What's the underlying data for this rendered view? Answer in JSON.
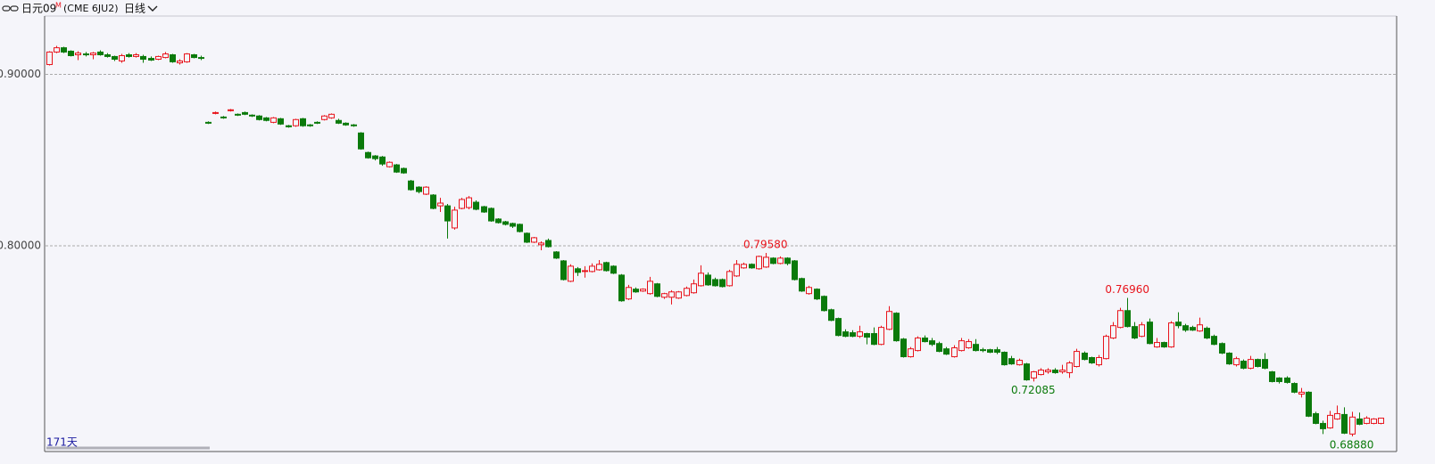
{
  "toolbar": {
    "symbol": "日元09",
    "badge": "M",
    "contract": "(CME 6JU2)",
    "period": "日线"
  },
  "chart_data": {
    "type": "candlestick",
    "ohlc": [
      [
        0.9057,
        0.9135,
        0.9052,
        0.913
      ],
      [
        0.913,
        0.9166,
        0.9124,
        0.9155
      ],
      [
        0.9155,
        0.9161,
        0.9124,
        0.913
      ],
      [
        0.9135,
        0.914,
        0.9104,
        0.9109
      ],
      [
        0.9114,
        0.9135,
        0.9083,
        0.9124
      ],
      [
        0.9119,
        0.913,
        0.9104,
        0.9114
      ],
      [
        0.9114,
        0.913,
        0.9088,
        0.9124
      ],
      [
        0.913,
        0.914,
        0.9109,
        0.9114
      ],
      [
        0.9114,
        0.9124,
        0.9098,
        0.9104
      ],
      [
        0.9104,
        0.9109,
        0.9078,
        0.9088
      ],
      [
        0.9078,
        0.9119,
        0.9067,
        0.9109
      ],
      [
        0.9114,
        0.9124,
        0.9098,
        0.9104
      ],
      [
        0.9104,
        0.9124,
        0.9098,
        0.9114
      ],
      [
        0.9104,
        0.9114,
        0.9067,
        0.9088
      ],
      [
        0.9093,
        0.9104,
        0.9078,
        0.9083
      ],
      [
        0.9088,
        0.9109,
        0.9083,
        0.9104
      ],
      [
        0.9098,
        0.913,
        0.9093,
        0.9119
      ],
      [
        0.9114,
        0.9119,
        0.9067,
        0.9073
      ],
      [
        0.9067,
        0.9088,
        0.9057,
        0.9078
      ],
      [
        0.9073,
        0.9124,
        0.9067,
        0.9119
      ],
      [
        0.9114,
        0.9119,
        0.9093,
        0.9098
      ],
      [
        0.9098,
        0.9109,
        0.9083,
        0.9093
      ],
      [
        0.872,
        0.8726,
        0.871,
        0.8715
      ],
      [
        0.8772,
        0.8783,
        0.8767,
        0.8777
      ],
      [
        0.8751,
        0.8757,
        0.8741,
        0.8746
      ],
      [
        0.8788,
        0.8798,
        0.8783,
        0.8793
      ],
      [
        0.8767,
        0.8772,
        0.8757,
        0.8762
      ],
      [
        0.8777,
        0.8783,
        0.8762,
        0.8767
      ],
      [
        0.8762,
        0.8767,
        0.8751,
        0.8757
      ],
      [
        0.8757,
        0.8762,
        0.8731,
        0.8736
      ],
      [
        0.8746,
        0.8751,
        0.8726,
        0.8731
      ],
      [
        0.872,
        0.8751,
        0.8715,
        0.8746
      ],
      [
        0.8741,
        0.8746,
        0.8705,
        0.871
      ],
      [
        0.87,
        0.8705,
        0.8689,
        0.8694
      ],
      [
        0.87,
        0.8741,
        0.8694,
        0.8736
      ],
      [
        0.8741,
        0.8746,
        0.8694,
        0.87
      ],
      [
        0.8705,
        0.871,
        0.8694,
        0.87
      ],
      [
        0.872,
        0.8726,
        0.871,
        0.8715
      ],
      [
        0.8736,
        0.8762,
        0.8731,
        0.8757
      ],
      [
        0.8746,
        0.8772,
        0.8741,
        0.8767
      ],
      [
        0.8731,
        0.8741,
        0.871,
        0.8715
      ],
      [
        0.8715,
        0.872,
        0.87,
        0.8705
      ],
      [
        0.8705,
        0.871,
        0.8694,
        0.87
      ],
      [
        0.8658,
        0.8663,
        0.856,
        0.8565
      ],
      [
        0.8544,
        0.8549,
        0.8508,
        0.8513
      ],
      [
        0.8524,
        0.8529,
        0.8498,
        0.8508
      ],
      [
        0.8518,
        0.8524,
        0.8467,
        0.8477
      ],
      [
        0.8461,
        0.8492,
        0.8456,
        0.8487
      ],
      [
        0.8472,
        0.8477,
        0.8425,
        0.843
      ],
      [
        0.8451,
        0.8456,
        0.842,
        0.8425
      ],
      [
        0.8378,
        0.8384,
        0.8321,
        0.8327
      ],
      [
        0.8342,
        0.8347,
        0.8306,
        0.8316
      ],
      [
        0.8301,
        0.8347,
        0.8296,
        0.8342
      ],
      [
        0.8296,
        0.8301,
        0.8213,
        0.8218
      ],
      [
        0.8233,
        0.828,
        0.8197,
        0.8249
      ],
      [
        0.8233,
        0.8244,
        0.8042,
        0.8145
      ],
      [
        0.8104,
        0.8228,
        0.8094,
        0.8208
      ],
      [
        0.8218,
        0.828,
        0.8213,
        0.827
      ],
      [
        0.8223,
        0.829,
        0.8213,
        0.828
      ],
      [
        0.8254,
        0.8265,
        0.8207,
        0.8213
      ],
      [
        0.8228,
        0.8233,
        0.8192,
        0.8197
      ],
      [
        0.8218,
        0.8223,
        0.814,
        0.8145
      ],
      [
        0.8156,
        0.8161,
        0.813,
        0.8135
      ],
      [
        0.814,
        0.8145,
        0.8119,
        0.8125
      ],
      [
        0.813,
        0.8135,
        0.8104,
        0.8114
      ],
      [
        0.8125,
        0.813,
        0.8078,
        0.8083
      ],
      [
        0.8073,
        0.8078,
        0.8016,
        0.8021
      ],
      [
        0.8021,
        0.8052,
        0.8016,
        0.8047
      ],
      [
        0.8006,
        0.8026,
        0.7974,
        0.8016
      ],
      [
        0.8031,
        0.8042,
        0.799,
        0.7995
      ],
      [
        0.7964,
        0.7969,
        0.7923,
        0.7928
      ],
      [
        0.7912,
        0.7917,
        0.7798,
        0.7803
      ],
      [
        0.7793,
        0.7892,
        0.7788,
        0.7881
      ],
      [
        0.7866,
        0.7876,
        0.7824,
        0.7845
      ],
      [
        0.785,
        0.7881,
        0.7814,
        0.7855
      ],
      [
        0.785,
        0.7897,
        0.7845,
        0.7881
      ],
      [
        0.786,
        0.7917,
        0.7855,
        0.7892
      ],
      [
        0.7902,
        0.7907,
        0.785,
        0.7855
      ],
      [
        0.7881,
        0.7886,
        0.7835,
        0.784
      ],
      [
        0.7829,
        0.7835,
        0.7674,
        0.7679
      ],
      [
        0.769,
        0.7772,
        0.7684,
        0.7757
      ],
      [
        0.7747,
        0.7757,
        0.7726,
        0.7731
      ],
      [
        0.7736,
        0.7752,
        0.7731,
        0.7747
      ],
      [
        0.7721,
        0.7819,
        0.7715,
        0.7793
      ],
      [
        0.7778,
        0.7783,
        0.77,
        0.7705
      ],
      [
        0.77,
        0.7726,
        0.769,
        0.7721
      ],
      [
        0.77,
        0.7741,
        0.7658,
        0.7731
      ],
      [
        0.7695,
        0.7736,
        0.769,
        0.7731
      ],
      [
        0.771,
        0.7762,
        0.7705,
        0.7752
      ],
      [
        0.7726,
        0.7803,
        0.7721,
        0.7778
      ],
      [
        0.7767,
        0.7886,
        0.7762,
        0.784
      ],
      [
        0.7829,
        0.7845,
        0.7767,
        0.7772
      ],
      [
        0.7803,
        0.7814,
        0.7762,
        0.7767
      ],
      [
        0.7803,
        0.7809,
        0.7757,
        0.7762
      ],
      [
        0.7767,
        0.786,
        0.7762,
        0.785
      ],
      [
        0.7824,
        0.7917,
        0.7819,
        0.7892
      ],
      [
        0.7871,
        0.7902,
        0.7866,
        0.7892
      ],
      [
        0.7892,
        0.7897,
        0.7866,
        0.7871
      ],
      [
        0.7866,
        0.7943,
        0.786,
        0.7938
      ],
      [
        0.7876,
        0.7958,
        0.7871,
        0.7933
      ],
      [
        0.7928,
        0.7933,
        0.7892,
        0.7897
      ],
      [
        0.7897,
        0.7938,
        0.7892,
        0.7928
      ],
      [
        0.7928,
        0.7933,
        0.7886,
        0.7897
      ],
      [
        0.7912,
        0.7917,
        0.7798,
        0.7803
      ],
      [
        0.7809,
        0.7814,
        0.7731,
        0.7736
      ],
      [
        0.7721,
        0.7767,
        0.7715,
        0.7757
      ],
      [
        0.7747,
        0.7752,
        0.7684,
        0.769
      ],
      [
        0.7705,
        0.771,
        0.7617,
        0.7622
      ],
      [
        0.7627,
        0.7633,
        0.756,
        0.7565
      ],
      [
        0.7576,
        0.7581,
        0.7472,
        0.7477
      ],
      [
        0.7498,
        0.7513,
        0.7467,
        0.7472
      ],
      [
        0.7493,
        0.7508,
        0.7467,
        0.7472
      ],
      [
        0.7472,
        0.7534,
        0.7462,
        0.7498
      ],
      [
        0.7488,
        0.7493,
        0.7425,
        0.7467
      ],
      [
        0.7488,
        0.7524,
        0.742,
        0.7425
      ],
      [
        0.7425,
        0.7534,
        0.742,
        0.7524
      ],
      [
        0.7513,
        0.7648,
        0.7508,
        0.7617
      ],
      [
        0.7607,
        0.7612,
        0.7441,
        0.7446
      ],
      [
        0.7456,
        0.7462,
        0.7348,
        0.7353
      ],
      [
        0.7353,
        0.741,
        0.7348,
        0.7399
      ],
      [
        0.7389,
        0.7472,
        0.7384,
        0.7462
      ],
      [
        0.7462,
        0.7477,
        0.7436,
        0.7441
      ],
      [
        0.7446,
        0.7462,
        0.7415,
        0.7425
      ],
      [
        0.743,
        0.7441,
        0.7379,
        0.7384
      ],
      [
        0.7399,
        0.741,
        0.7363,
        0.7368
      ],
      [
        0.7353,
        0.742,
        0.7348,
        0.7405
      ],
      [
        0.7389,
        0.7462,
        0.7384,
        0.7446
      ],
      [
        0.7405,
        0.7456,
        0.7399,
        0.7441
      ],
      [
        0.7425,
        0.7456,
        0.7384,
        0.7389
      ],
      [
        0.7394,
        0.7405,
        0.7379,
        0.7389
      ],
      [
        0.7394,
        0.7399,
        0.7374,
        0.7379
      ],
      [
        0.7394,
        0.741,
        0.7368,
        0.7379
      ],
      [
        0.7379,
        0.7384,
        0.7301,
        0.7306
      ],
      [
        0.7342,
        0.7358,
        0.7306,
        0.7311
      ],
      [
        0.7306,
        0.7342,
        0.7301,
        0.7332
      ],
      [
        0.7311,
        0.7317,
        0.7213,
        0.7218
      ],
      [
        0.7229,
        0.727,
        0.72085,
        0.7265
      ],
      [
        0.7249,
        0.7286,
        0.7244,
        0.7275
      ],
      [
        0.7265,
        0.7286,
        0.7254,
        0.7275
      ],
      [
        0.7275,
        0.7286,
        0.7254,
        0.726
      ],
      [
        0.7265,
        0.7306,
        0.7254,
        0.7275
      ],
      [
        0.726,
        0.7327,
        0.7229,
        0.7317
      ],
      [
        0.7296,
        0.7399,
        0.7291,
        0.7384
      ],
      [
        0.7374,
        0.7384,
        0.7332,
        0.7337
      ],
      [
        0.7348,
        0.7353,
        0.7311,
        0.7317
      ],
      [
        0.7306,
        0.7363,
        0.7296,
        0.7348
      ],
      [
        0.7342,
        0.7482,
        0.7337,
        0.7472
      ],
      [
        0.7462,
        0.7555,
        0.7456,
        0.7534
      ],
      [
        0.7524,
        0.7638,
        0.7519,
        0.7622
      ],
      [
        0.7622,
        0.7696,
        0.7524,
        0.7529
      ],
      [
        0.7529,
        0.7555,
        0.7456,
        0.7462
      ],
      [
        0.7472,
        0.7555,
        0.7467,
        0.7539
      ],
      [
        0.7555,
        0.7576,
        0.7425,
        0.743
      ],
      [
        0.741,
        0.7462,
        0.7405,
        0.7436
      ],
      [
        0.7436,
        0.7441,
        0.7405,
        0.741
      ],
      [
        0.741,
        0.756,
        0.7405,
        0.755
      ],
      [
        0.7555,
        0.7612,
        0.7519,
        0.7534
      ],
      [
        0.7534,
        0.7545,
        0.7498,
        0.7508
      ],
      [
        0.7524,
        0.7534,
        0.7503,
        0.7508
      ],
      [
        0.7503,
        0.7581,
        0.7498,
        0.7539
      ],
      [
        0.7519,
        0.7529,
        0.7456,
        0.7462
      ],
      [
        0.7472,
        0.7482,
        0.742,
        0.7425
      ],
      [
        0.743,
        0.7436,
        0.7368,
        0.7374
      ],
      [
        0.7374,
        0.7379,
        0.7306,
        0.7311
      ],
      [
        0.7306,
        0.7353,
        0.7296,
        0.7342
      ],
      [
        0.7327,
        0.7337,
        0.728,
        0.7286
      ],
      [
        0.7286,
        0.7358,
        0.728,
        0.7337
      ],
      [
        0.7337,
        0.7342,
        0.7291,
        0.7296
      ],
      [
        0.7337,
        0.7374,
        0.728,
        0.7286
      ],
      [
        0.7265,
        0.727,
        0.7203,
        0.7208
      ],
      [
        0.7229,
        0.7234,
        0.7197,
        0.7208
      ],
      [
        0.7229,
        0.7239,
        0.7197,
        0.7203
      ],
      [
        0.7197,
        0.7203,
        0.714,
        0.7146
      ],
      [
        0.7135,
        0.7171,
        0.7115,
        0.7146
      ],
      [
        0.7146,
        0.7151,
        0.7001,
        0.7006
      ],
      [
        0.7021,
        0.7032,
        0.6959,
        0.6964
      ],
      [
        0.6964,
        0.698,
        0.6902,
        0.6933
      ],
      [
        0.6938,
        0.7037,
        0.6933,
        0.7011
      ],
      [
        0.699,
        0.7068,
        0.6985,
        0.7021
      ],
      [
        0.7016,
        0.7058,
        0.6902,
        0.6907
      ],
      [
        0.6902,
        0.7032,
        0.6888,
        0.7001
      ],
      [
        0.699,
        0.7027,
        0.6954,
        0.6959
      ],
      [
        0.6964,
        0.7006,
        0.6959,
        0.6995
      ],
      [
        0.6964,
        0.6995,
        0.6959,
        0.699
      ],
      [
        0.6964,
        0.6995,
        0.6959,
        0.6995
      ]
    ],
    "up_color": "#e8141c",
    "down_color": "#0b7a0b",
    "grid": true,
    "ylim": [
      0.68,
      0.934
    ],
    "yticks": [
      {
        "value": 0.9,
        "label": "0.90000"
      },
      {
        "value": 0.8,
        "label": "0.80000"
      }
    ],
    "extreme_labels": [
      {
        "value": 0.7958,
        "label": "0.79580"
      },
      {
        "value": 0.72085,
        "label": "0.72085"
      },
      {
        "value": 0.7696,
        "label": "0.76960"
      },
      {
        "value": 0.6888,
        "label": "0.68880"
      }
    ]
  },
  "footer": {
    "days": "171天"
  }
}
